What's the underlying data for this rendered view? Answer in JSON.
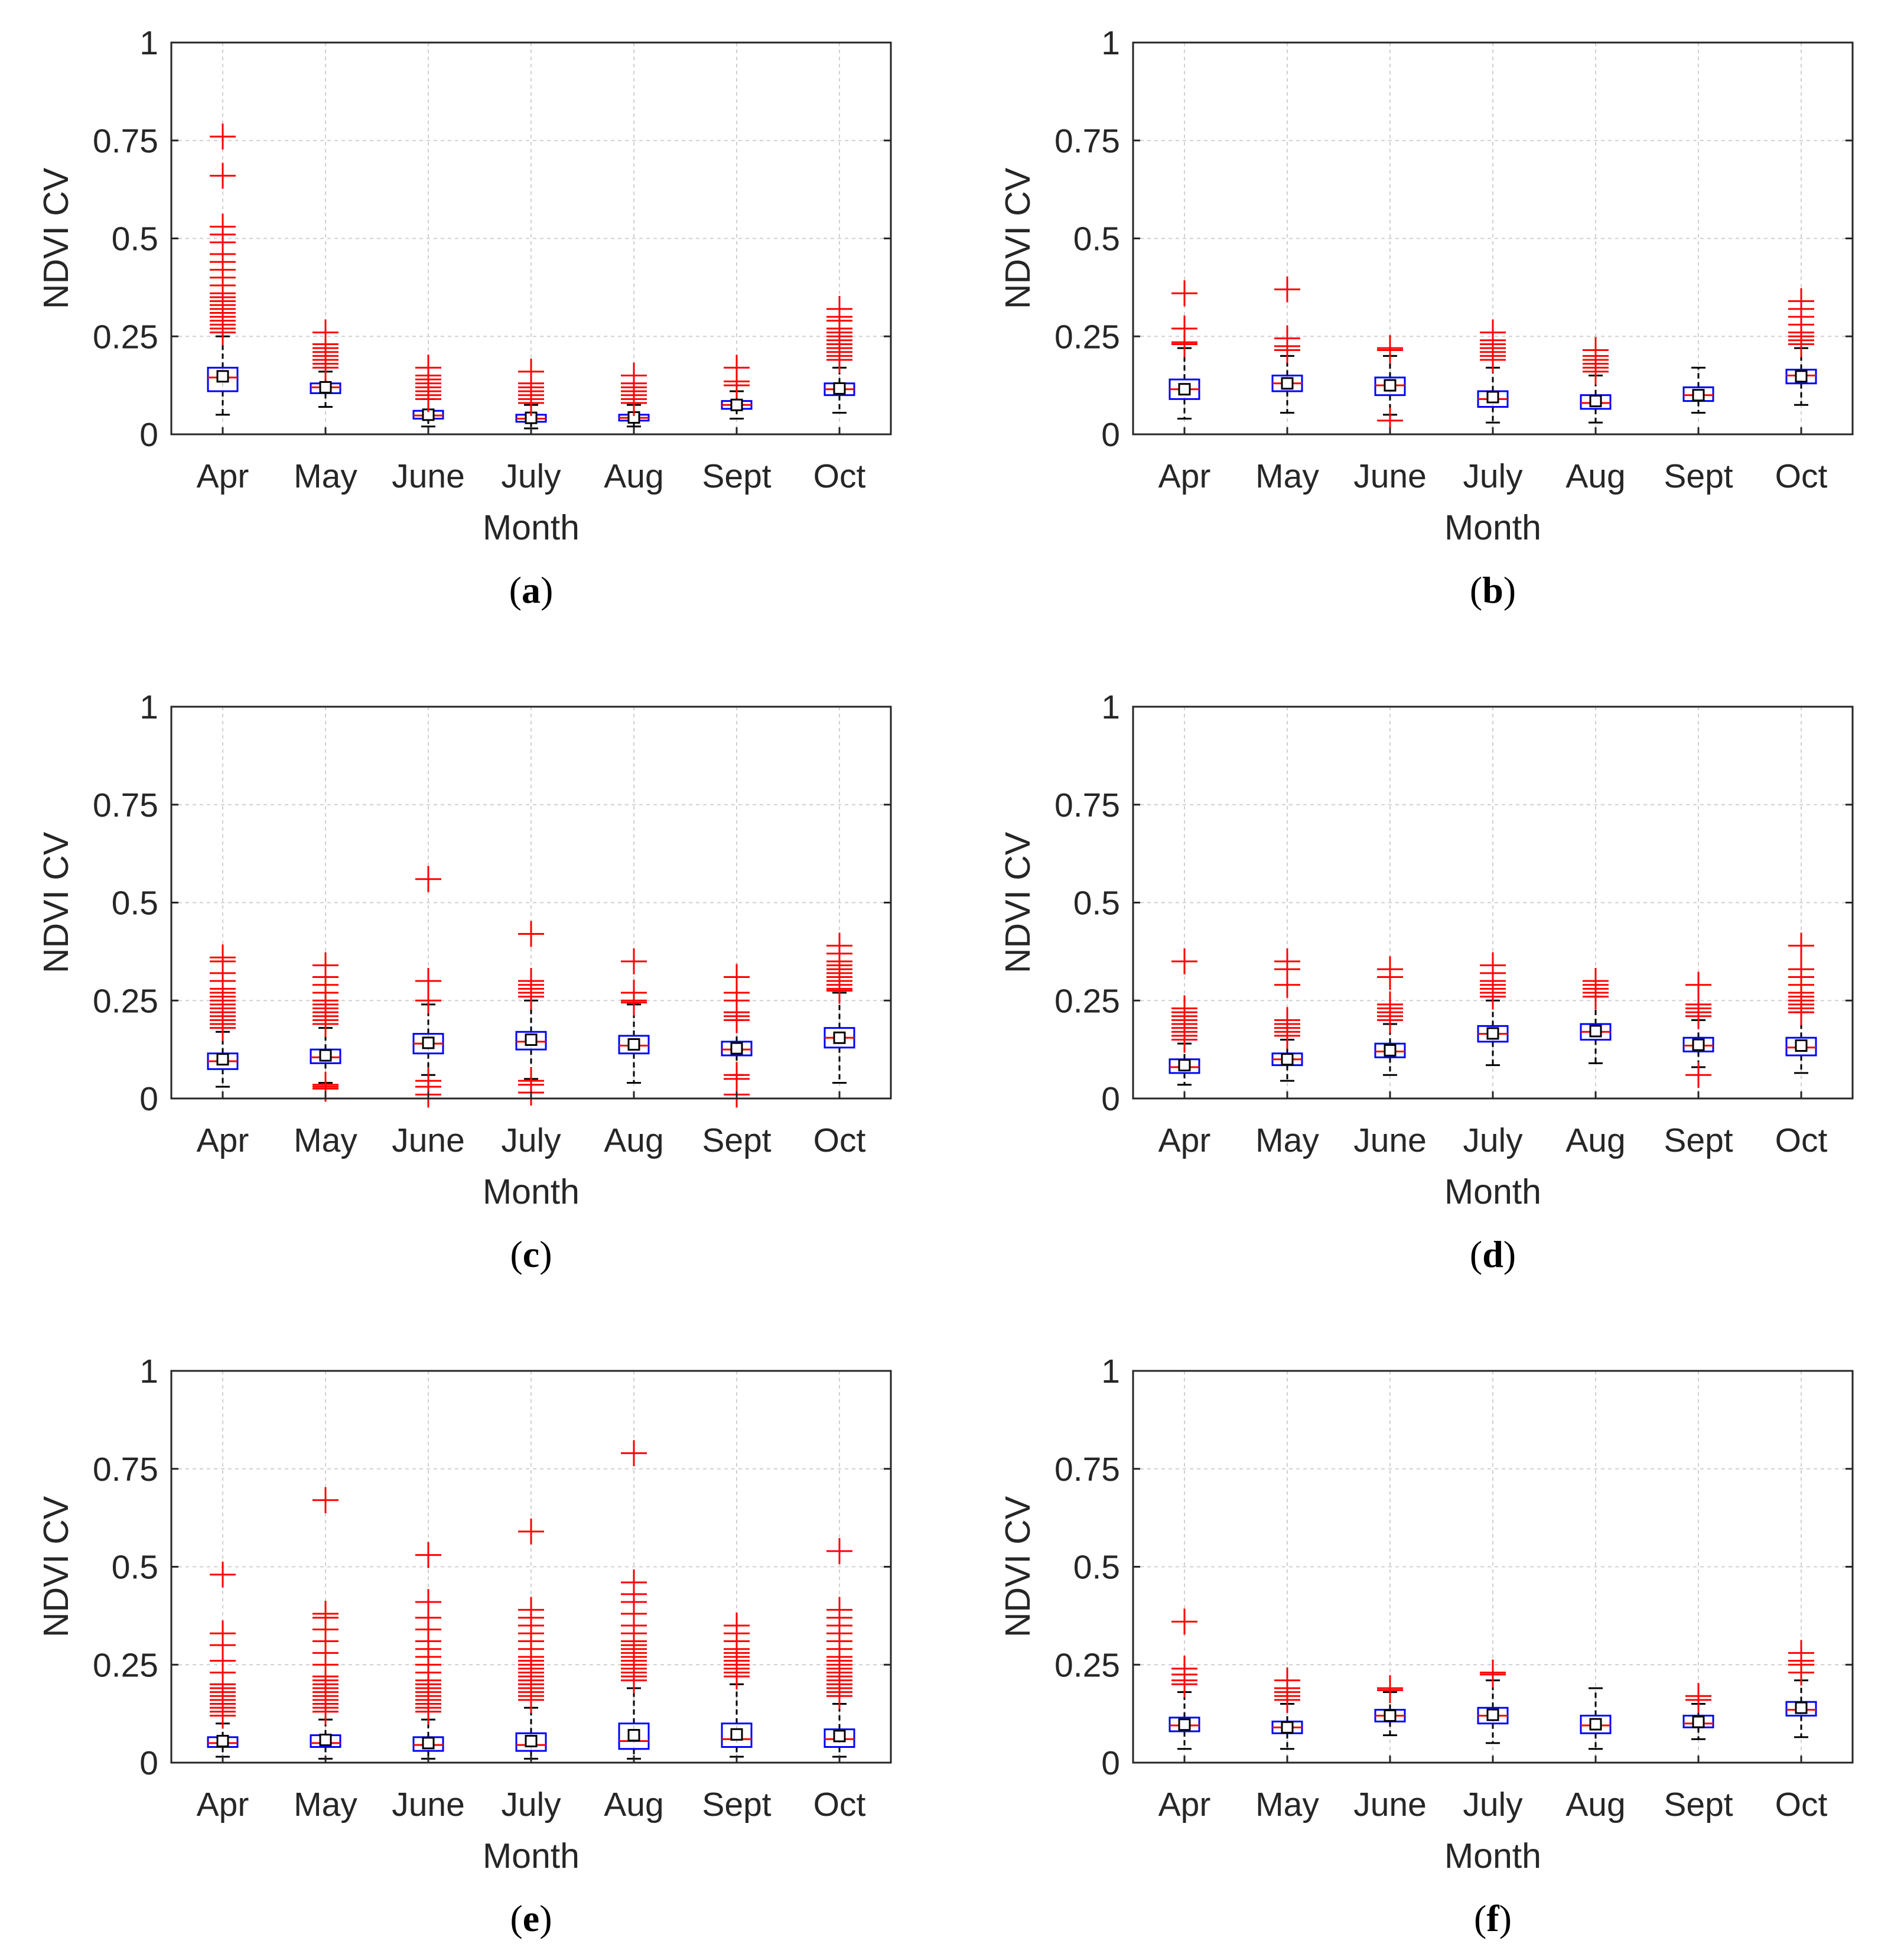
{
  "figure": {
    "colors": {
      "box": "#0000ff",
      "median": "#ff0000",
      "outlier": "#ff0000",
      "whisker": "#000000",
      "mean_marker": "#000000",
      "grid": "#d0d0d0",
      "axes": "#262626"
    }
  },
  "chart_data": [
    {
      "panel": "a",
      "panel_label": "a",
      "type": "box",
      "xlabel": "Month",
      "ylabel": "NDVI CV",
      "ylim": [
        0,
        1
      ],
      "yticks": [
        0,
        0.25,
        0.5,
        0.75,
        1
      ],
      "ytick_labels": [
        "0",
        "0.25",
        "0.5",
        "0.75",
        "1"
      ],
      "categories": [
        "Apr",
        "May",
        "June",
        "July",
        "Aug",
        "Sept",
        "Oct"
      ],
      "boxes": [
        {
          "min": 0.05,
          "q1": 0.11,
          "median": 0.145,
          "q3": 0.17,
          "max": 0.25,
          "mean": 0.148
        },
        {
          "min": 0.07,
          "q1": 0.105,
          "median": 0.12,
          "q3": 0.13,
          "max": 0.16,
          "mean": 0.12
        },
        {
          "min": 0.02,
          "q1": 0.04,
          "median": 0.048,
          "q3": 0.06,
          "max": 0.09,
          "mean": 0.05
        },
        {
          "min": 0.015,
          "q1": 0.032,
          "median": 0.04,
          "q3": 0.05,
          "max": 0.075,
          "mean": 0.042
        },
        {
          "min": 0.02,
          "q1": 0.035,
          "median": 0.042,
          "q3": 0.05,
          "max": 0.075,
          "mean": 0.043
        },
        {
          "min": 0.04,
          "q1": 0.065,
          "median": 0.075,
          "q3": 0.085,
          "max": 0.11,
          "mean": 0.075
        },
        {
          "min": 0.055,
          "q1": 0.1,
          "median": 0.115,
          "q3": 0.13,
          "max": 0.17,
          "mean": 0.117
        }
      ],
      "outliers": [
        [
          0.76,
          0.66,
          0.53,
          0.51,
          0.49,
          0.46,
          0.44,
          0.42,
          0.4,
          0.38,
          0.36,
          0.35,
          0.34,
          0.33,
          0.32,
          0.31,
          0.3,
          0.29,
          0.28,
          0.27,
          0.26
        ],
        [
          0.26,
          0.23,
          0.22,
          0.21,
          0.2,
          0.19,
          0.18,
          0.17
        ],
        [
          0.17,
          0.15,
          0.14,
          0.13,
          0.12,
          0.11,
          0.1,
          0.09
        ],
        [
          0.16,
          0.13,
          0.12,
          0.11,
          0.1,
          0.09,
          0.08
        ],
        [
          0.15,
          0.13,
          0.12,
          0.11,
          0.1,
          0.09,
          0.08
        ],
        [
          0.17,
          0.135,
          0.125
        ],
        [
          0.32,
          0.3,
          0.29,
          0.27,
          0.26,
          0.25,
          0.24,
          0.23,
          0.22,
          0.21,
          0.2,
          0.19
        ]
      ]
    },
    {
      "panel": "b",
      "panel_label": "b",
      "type": "box",
      "xlabel": "Month",
      "ylabel": "NDVI CV",
      "ylim": [
        0,
        1
      ],
      "yticks": [
        0,
        0.25,
        0.5,
        0.75,
        1
      ],
      "ytick_labels": [
        "0",
        "0.25",
        "0.5",
        "0.75",
        "1"
      ],
      "categories": [
        "Apr",
        "May",
        "June",
        "July",
        "Aug",
        "Sept",
        "Oct"
      ],
      "boxes": [
        {
          "min": 0.04,
          "q1": 0.09,
          "median": 0.115,
          "q3": 0.14,
          "max": 0.22,
          "mean": 0.115
        },
        {
          "min": 0.055,
          "q1": 0.11,
          "median": 0.13,
          "q3": 0.15,
          "max": 0.2,
          "mean": 0.13
        },
        {
          "min": 0.05,
          "q1": 0.1,
          "median": 0.125,
          "q3": 0.145,
          "max": 0.2,
          "mean": 0.125
        },
        {
          "min": 0.03,
          "q1": 0.07,
          "median": 0.09,
          "q3": 0.11,
          "max": 0.17,
          "mean": 0.095
        },
        {
          "min": 0.03,
          "q1": 0.065,
          "median": 0.08,
          "q3": 0.1,
          "max": 0.15,
          "mean": 0.085
        },
        {
          "min": 0.055,
          "q1": 0.085,
          "median": 0.1,
          "q3": 0.12,
          "max": 0.17,
          "mean": 0.1
        },
        {
          "min": 0.075,
          "q1": 0.13,
          "median": 0.15,
          "q3": 0.165,
          "max": 0.22,
          "mean": 0.148
        }
      ],
      "outliers": [
        [
          0.36,
          0.27,
          0.235,
          0.23
        ],
        [
          0.37,
          0.245,
          0.225,
          0.215
        ],
        [
          0.22,
          0.215,
          0.035
        ],
        [
          0.26,
          0.24,
          0.23,
          0.22,
          0.21,
          0.2,
          0.19
        ],
        [
          0.215,
          0.2,
          0.19,
          0.18,
          0.17,
          0.16
        ],
        [],
        [
          0.34,
          0.32,
          0.3,
          0.28,
          0.26,
          0.25,
          0.24,
          0.23
        ]
      ]
    },
    {
      "panel": "c",
      "panel_label": "c",
      "type": "box",
      "xlabel": "Month",
      "ylabel": "NDVI CV",
      "ylim": [
        0,
        1
      ],
      "yticks": [
        0,
        0.25,
        0.5,
        0.75,
        1
      ],
      "ytick_labels": [
        "0",
        "0.25",
        "0.5",
        "0.75",
        "1"
      ],
      "categories": [
        "Apr",
        "May",
        "June",
        "July",
        "Aug",
        "Sept",
        "Oct"
      ],
      "boxes": [
        {
          "min": 0.03,
          "q1": 0.075,
          "median": 0.095,
          "q3": 0.115,
          "max": 0.17,
          "mean": 0.1
        },
        {
          "min": 0.04,
          "q1": 0.09,
          "median": 0.105,
          "q3": 0.125,
          "max": 0.18,
          "mean": 0.11
        },
        {
          "min": 0.06,
          "q1": 0.115,
          "median": 0.14,
          "q3": 0.165,
          "max": 0.24,
          "mean": 0.142
        },
        {
          "min": 0.05,
          "q1": 0.125,
          "median": 0.145,
          "q3": 0.17,
          "max": 0.25,
          "mean": 0.15
        },
        {
          "min": 0.04,
          "q1": 0.115,
          "median": 0.135,
          "q3": 0.16,
          "max": 0.24,
          "mean": 0.138
        },
        {
          "min": 0.06,
          "q1": 0.11,
          "median": 0.125,
          "q3": 0.145,
          "max": 0.2,
          "mean": 0.128
        },
        {
          "min": 0.04,
          "q1": 0.13,
          "median": 0.155,
          "q3": 0.18,
          "max": 0.27,
          "mean": 0.155
        }
      ],
      "outliers": [
        [
          0.36,
          0.35,
          0.32,
          0.3,
          0.28,
          0.27,
          0.26,
          0.25,
          0.24,
          0.23,
          0.22,
          0.21,
          0.2,
          0.19,
          0.18
        ],
        [
          0.34,
          0.31,
          0.29,
          0.27,
          0.25,
          0.24,
          0.23,
          0.22,
          0.21,
          0.2,
          0.19,
          0.035,
          0.03,
          0.025
        ],
        [
          0.56,
          0.3,
          0.25,
          0.045,
          0.03,
          0.01
        ],
        [
          0.42,
          0.3,
          0.29,
          0.28,
          0.27,
          0.26,
          0.045,
          0.035,
          0.015
        ],
        [
          0.35,
          0.27,
          0.25,
          0.245
        ],
        [
          0.31,
          0.27,
          0.25,
          0.22,
          0.21,
          0.2,
          0.06,
          0.05,
          0.01
        ],
        [
          0.39,
          0.37,
          0.35,
          0.34,
          0.33,
          0.32,
          0.31,
          0.3,
          0.29,
          0.28,
          0.275
        ]
      ]
    },
    {
      "panel": "d",
      "panel_label": "d",
      "type": "box",
      "xlabel": "Month",
      "ylabel": "NDVI CV",
      "ylim": [
        0,
        1
      ],
      "yticks": [
        0,
        0.25,
        0.5,
        0.75,
        1
      ],
      "ytick_labels": [
        "0",
        "0.25",
        "0.5",
        "0.75",
        "1"
      ],
      "categories": [
        "Apr",
        "May",
        "June",
        "July",
        "Aug",
        "Sept",
        "Oct"
      ],
      "boxes": [
        {
          "min": 0.035,
          "q1": 0.065,
          "median": 0.08,
          "q3": 0.1,
          "max": 0.14,
          "mean": 0.085
        },
        {
          "min": 0.045,
          "q1": 0.085,
          "median": 0.1,
          "q3": 0.115,
          "max": 0.15,
          "mean": 0.1
        },
        {
          "min": 0.06,
          "q1": 0.105,
          "median": 0.12,
          "q3": 0.14,
          "max": 0.19,
          "mean": 0.123
        },
        {
          "min": 0.085,
          "q1": 0.145,
          "median": 0.165,
          "q3": 0.185,
          "max": 0.25,
          "mean": 0.166
        },
        {
          "min": 0.09,
          "q1": 0.15,
          "median": 0.17,
          "q3": 0.19,
          "max": 0.26,
          "mean": 0.172
        },
        {
          "min": 0.08,
          "q1": 0.12,
          "median": 0.135,
          "q3": 0.155,
          "max": 0.2,
          "mean": 0.137
        },
        {
          "min": 0.065,
          "q1": 0.11,
          "median": 0.13,
          "q3": 0.155,
          "max": 0.22,
          "mean": 0.135
        }
      ],
      "outliers": [
        [
          0.35,
          0.23,
          0.22,
          0.21,
          0.2,
          0.19,
          0.18,
          0.17,
          0.16,
          0.15
        ],
        [
          0.35,
          0.33,
          0.29,
          0.2,
          0.19,
          0.18,
          0.17,
          0.16
        ],
        [
          0.33,
          0.31,
          0.24,
          0.23,
          0.22,
          0.21,
          0.2
        ],
        [
          0.34,
          0.32,
          0.3,
          0.29,
          0.28,
          0.27,
          0.26
        ],
        [
          0.3,
          0.29,
          0.28,
          0.27,
          0.26
        ],
        [
          0.29,
          0.24,
          0.23,
          0.22,
          0.21,
          0.06
        ],
        [
          0.39,
          0.33,
          0.31,
          0.29,
          0.27,
          0.26,
          0.25,
          0.24,
          0.23,
          0.22
        ]
      ]
    },
    {
      "panel": "e",
      "panel_label": "e",
      "type": "box",
      "xlabel": "Month",
      "ylabel": "NDVI CV",
      "ylim": [
        0,
        1
      ],
      "yticks": [
        0,
        0.25,
        0.5,
        0.75,
        1
      ],
      "ytick_labels": [
        "0",
        "0.25",
        "0.5",
        "0.75",
        "1"
      ],
      "categories": [
        "Apr",
        "May",
        "June",
        "July",
        "Aug",
        "Sept",
        "Oct"
      ],
      "boxes": [
        {
          "min": 0.015,
          "q1": 0.04,
          "median": 0.05,
          "q3": 0.065,
          "max": 0.1,
          "mean": 0.055
        },
        {
          "min": 0.01,
          "q1": 0.04,
          "median": 0.05,
          "q3": 0.07,
          "max": 0.11,
          "mean": 0.058
        },
        {
          "min": 0.01,
          "q1": 0.03,
          "median": 0.045,
          "q3": 0.065,
          "max": 0.11,
          "mean": 0.05
        },
        {
          "min": 0.01,
          "q1": 0.03,
          "median": 0.045,
          "q3": 0.075,
          "max": 0.14,
          "mean": 0.055
        },
        {
          "min": 0.01,
          "q1": 0.035,
          "median": 0.055,
          "q3": 0.1,
          "max": 0.19,
          "mean": 0.07
        },
        {
          "min": 0.015,
          "q1": 0.04,
          "median": 0.06,
          "q3": 0.1,
          "max": 0.2,
          "mean": 0.072
        },
        {
          "min": 0.015,
          "q1": 0.04,
          "median": 0.06,
          "q3": 0.085,
          "max": 0.15,
          "mean": 0.068
        }
      ],
      "outliers": [
        [
          0.48,
          0.33,
          0.3,
          0.26,
          0.23,
          0.2,
          0.19,
          0.18,
          0.17,
          0.16,
          0.15,
          0.14,
          0.13,
          0.12
        ],
        [
          0.67,
          0.38,
          0.37,
          0.34,
          0.31,
          0.28,
          0.25,
          0.22,
          0.21,
          0.2,
          0.19,
          0.18,
          0.17,
          0.16,
          0.15,
          0.14,
          0.13
        ],
        [
          0.53,
          0.41,
          0.37,
          0.34,
          0.31,
          0.29,
          0.27,
          0.25,
          0.23,
          0.21,
          0.2,
          0.19,
          0.18,
          0.17,
          0.16,
          0.15,
          0.14,
          0.13
        ],
        [
          0.59,
          0.39,
          0.37,
          0.35,
          0.33,
          0.31,
          0.29,
          0.27,
          0.26,
          0.25,
          0.24,
          0.23,
          0.22,
          0.21,
          0.2,
          0.19,
          0.18,
          0.17,
          0.16
        ],
        [
          0.79,
          0.46,
          0.43,
          0.41,
          0.38,
          0.35,
          0.33,
          0.31,
          0.3,
          0.29,
          0.28,
          0.27,
          0.26,
          0.25,
          0.24,
          0.23,
          0.22,
          0.21
        ],
        [
          0.35,
          0.33,
          0.31,
          0.29,
          0.28,
          0.27,
          0.26,
          0.25,
          0.24,
          0.23,
          0.22
        ],
        [
          0.54,
          0.39,
          0.37,
          0.35,
          0.33,
          0.31,
          0.29,
          0.27,
          0.26,
          0.25,
          0.24,
          0.23,
          0.22,
          0.21,
          0.2,
          0.19,
          0.18,
          0.17
        ]
      ]
    },
    {
      "panel": "f",
      "panel_label": "f",
      "type": "box",
      "xlabel": "Month",
      "ylabel": "NDVI CV",
      "ylim": [
        0,
        1
      ],
      "yticks": [
        0,
        0.25,
        0.5,
        0.75,
        1
      ],
      "ytick_labels": [
        "0",
        "0.25",
        "0.5",
        "0.75",
        "1"
      ],
      "categories": [
        "Apr",
        "May",
        "June",
        "July",
        "Aug",
        "Sept",
        "Oct"
      ],
      "boxes": [
        {
          "min": 0.035,
          "q1": 0.08,
          "median": 0.095,
          "q3": 0.115,
          "max": 0.18,
          "mean": 0.097
        },
        {
          "min": 0.035,
          "q1": 0.075,
          "median": 0.09,
          "q3": 0.105,
          "max": 0.15,
          "mean": 0.09
        },
        {
          "min": 0.07,
          "q1": 0.105,
          "median": 0.12,
          "q3": 0.135,
          "max": 0.18,
          "mean": 0.12
        },
        {
          "min": 0.05,
          "q1": 0.1,
          "median": 0.12,
          "q3": 0.14,
          "max": 0.21,
          "mean": 0.122
        },
        {
          "min": 0.035,
          "q1": 0.075,
          "median": 0.095,
          "q3": 0.12,
          "max": 0.19,
          "mean": 0.098
        },
        {
          "min": 0.06,
          "q1": 0.09,
          "median": 0.1,
          "q3": 0.12,
          "max": 0.15,
          "mean": 0.104
        },
        {
          "min": 0.065,
          "q1": 0.12,
          "median": 0.135,
          "q3": 0.155,
          "max": 0.21,
          "mean": 0.14
        }
      ],
      "outliers": [
        [
          0.36,
          0.24,
          0.225,
          0.21,
          0.2
        ],
        [
          0.21,
          0.19,
          0.18,
          0.17,
          0.16
        ],
        [
          0.19,
          0.185
        ],
        [
          0.23,
          0.225
        ],
        [],
        [
          0.17,
          0.16
        ],
        [
          0.28,
          0.26,
          0.25,
          0.23
        ]
      ]
    }
  ]
}
